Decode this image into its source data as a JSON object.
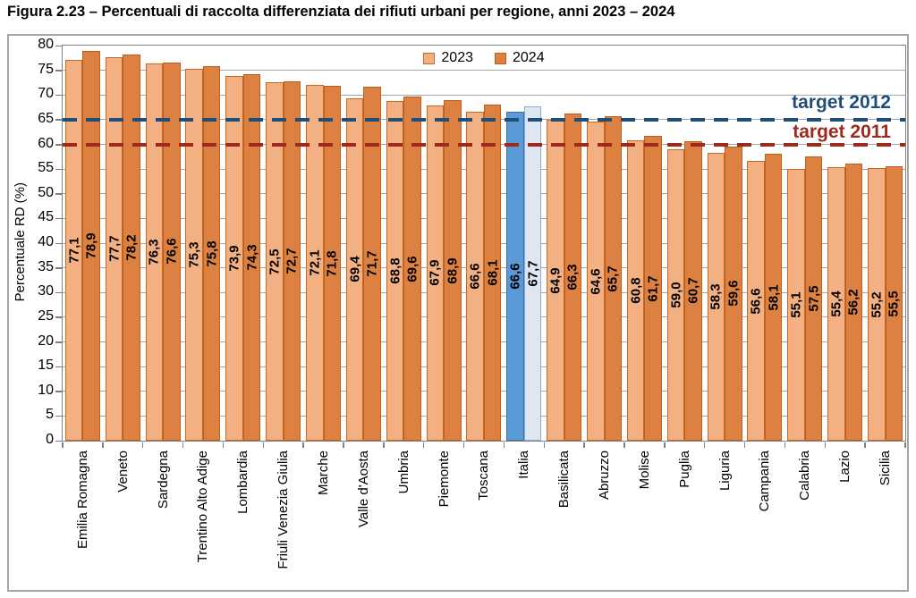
{
  "chart_data": {
    "type": "bar",
    "title": "Figura 2.23 – Percentuali di raccolta differenziata dei rifiuti urbani per regione, anni 2023 – 2024",
    "xlabel": "",
    "ylabel": "Percentuale RD (%)",
    "ylim": [
      0,
      80
    ],
    "ystep": 5,
    "yticks": [
      0,
      5,
      10,
      15,
      20,
      25,
      30,
      35,
      40,
      45,
      50,
      55,
      60,
      65,
      70,
      75,
      80
    ],
    "grid": true,
    "legend_position": "top-center",
    "categories": [
      "Emilia Romagna",
      "Veneto",
      "Sardegna",
      "Trentino Alto Adige",
      "Lombardia",
      "Friuli Venezia Giulia",
      "Marche",
      "Valle d'Aosta",
      "Umbria",
      "Piemonte",
      "Toscana",
      "Italia",
      "Basilicata",
      "Abruzzo",
      "Molise",
      "Puglia",
      "Liguria",
      "Campania",
      "Calabria",
      "Lazio",
      "Sicilia"
    ],
    "series": [
      {
        "name": "2023",
        "values": [
          77.1,
          77.7,
          76.3,
          75.3,
          73.9,
          72.5,
          72.1,
          69.4,
          68.8,
          67.9,
          66.6,
          66.6,
          64.9,
          64.6,
          60.8,
          59.0,
          58.3,
          56.6,
          55.1,
          55.4,
          55.2
        ],
        "labels": [
          "77,1",
          "77,7",
          "76,3",
          "75,3",
          "73,9",
          "72,5",
          "72,1",
          "69,4",
          "68,8",
          "67,9",
          "66,6",
          "66,6",
          "64,9",
          "64,6",
          "60,8",
          "59,0",
          "58,3",
          "56,6",
          "55,1",
          "55,4",
          "55,2"
        ]
      },
      {
        "name": "2024",
        "values": [
          78.9,
          78.2,
          76.6,
          75.8,
          74.3,
          72.7,
          71.8,
          71.7,
          69.6,
          68.9,
          68.1,
          67.7,
          66.3,
          65.7,
          61.7,
          60.7,
          59.6,
          58.1,
          57.5,
          56.2,
          55.5
        ],
        "labels": [
          "78,9",
          "78,2",
          "76,6",
          "75,8",
          "74,3",
          "72,7",
          "71,8",
          "71,7",
          "69,6",
          "68,9",
          "68,1",
          "67,7",
          "66,3",
          "65,7",
          "61,7",
          "60,7",
          "59,6",
          "58,1",
          "57,5",
          "56,2",
          "55,5"
        ]
      }
    ],
    "highlight_category": "Italia",
    "target_lines": [
      {
        "label": "target 2012",
        "value": 65,
        "color": "#1F4E79"
      },
      {
        "label": "target 2011",
        "value": 60,
        "color": "#9E2A1E"
      }
    ],
    "colors": {
      "s2023_fill": "#F3B183",
      "s2023_border": "#C8691F",
      "s2024_fill": "#DD8142",
      "s2024_border": "#BC5E1E",
      "italia_2023_fill": "#5B9BD5",
      "italia_2023_border": "#3E6FA3",
      "italia_2024_fill": "#DEE6F1",
      "italia_2024_border": "#8FAADC",
      "gridline": "#A6A6A6",
      "axis": "#7F7F7F"
    }
  }
}
